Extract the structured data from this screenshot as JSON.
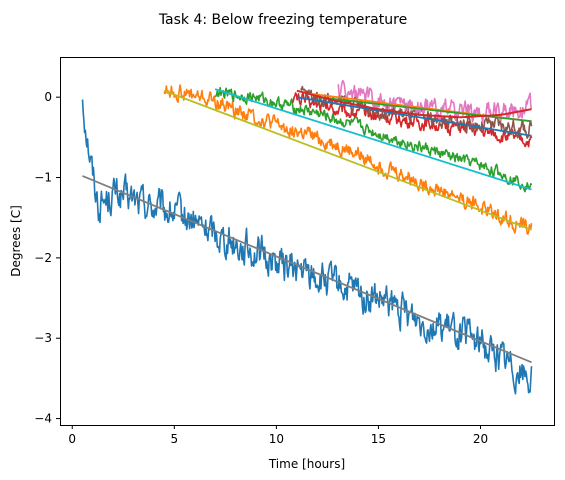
{
  "chart_data": {
    "type": "line",
    "title": "Task 4: Below freezing temperature",
    "xlabel": "Time [hours]",
    "ylabel": "Degrees [C]",
    "xlim": [
      -0.6,
      23.6
    ],
    "ylim": [
      -4.08,
      0.5
    ],
    "xticks": [
      0,
      5,
      10,
      15,
      20
    ],
    "yticks": [
      0,
      -1,
      -2,
      -3,
      -4
    ],
    "grid": false,
    "noisy_series": [
      {
        "color": "#1f77b4",
        "x_start": 0.5,
        "x_end": 22.5,
        "trend": [
          [
            0.5,
            0.0
          ],
          [
            0.7,
            -0.4
          ],
          [
            1.0,
            -0.95
          ],
          [
            1.3,
            -1.35
          ],
          [
            2.0,
            -1.2
          ],
          [
            5.0,
            -1.45
          ],
          [
            10.0,
            -2.05
          ],
          [
            15.0,
            -2.55
          ],
          [
            20.0,
            -3.05
          ],
          [
            22.5,
            -3.5
          ]
        ],
        "amplitude": 0.17
      },
      {
        "color": "#ff7f0e",
        "x_start": 4.5,
        "x_end": 22.5,
        "trend": [
          [
            4.5,
            0.1
          ],
          [
            7.0,
            -0.05
          ],
          [
            10.0,
            -0.35
          ],
          [
            13.0,
            -0.6
          ],
          [
            16.0,
            -0.95
          ],
          [
            19.0,
            -1.25
          ],
          [
            22.5,
            -1.65
          ]
        ],
        "amplitude": 0.08
      },
      {
        "color": "#2ca02c",
        "x_start": 7.0,
        "x_end": 22.5,
        "trend": [
          [
            7.0,
            0.05
          ],
          [
            9.0,
            0.0
          ],
          [
            12.0,
            -0.2
          ],
          [
            15.0,
            -0.45
          ],
          [
            18.0,
            -0.7
          ],
          [
            20.0,
            -0.85
          ],
          [
            22.5,
            -1.1
          ]
        ],
        "amplitude": 0.06
      },
      {
        "color": "#d62728",
        "x_start": 10.8,
        "x_end": 22.5,
        "trend": [
          [
            10.8,
            0.0
          ],
          [
            13.0,
            -0.15
          ],
          [
            16.0,
            -0.28
          ],
          [
            19.0,
            -0.38
          ],
          [
            22.5,
            -0.55
          ]
        ],
        "amplitude": 0.07
      },
      {
        "color": "#8c564b",
        "x_start": 11.2,
        "x_end": 22.5,
        "trend": [
          [
            11.2,
            0.05
          ],
          [
            13.0,
            -0.05
          ],
          [
            16.0,
            -0.2
          ],
          [
            19.0,
            -0.32
          ],
          [
            22.5,
            -0.4
          ]
        ],
        "amplitude": 0.08
      },
      {
        "color": "#e377c2",
        "x_start": 13.0,
        "x_end": 22.5,
        "trend": [
          [
            13.0,
            0.1
          ],
          [
            15.0,
            -0.05
          ],
          [
            18.0,
            -0.15
          ],
          [
            20.0,
            -0.2
          ],
          [
            22.5,
            -0.1
          ]
        ],
        "amplitude": 0.1
      }
    ],
    "fit_lines": [
      {
        "color": "#7f7f7f",
        "x": [
          0.5,
          22.5
        ],
        "y": [
          -0.98,
          -3.3
        ]
      },
      {
        "color": "#bcbd22",
        "x": [
          4.5,
          22.5
        ],
        "y": [
          0.08,
          -1.65
        ]
      },
      {
        "color": "#17becf",
        "x": [
          7.0,
          22.5
        ],
        "y": [
          0.1,
          -1.15
        ]
      },
      {
        "color": "#1f77b4",
        "x": [
          11.0,
          22.5
        ],
        "y": [
          0.0,
          -0.48
        ]
      },
      {
        "color": "#ff7f0e",
        "x": [
          11.4,
          22.5
        ],
        "y": [
          0.05,
          -0.3
        ]
      },
      {
        "color": "#2ca02c",
        "x": [
          12.0,
          22.5
        ],
        "y": [
          0.0,
          -0.3
        ]
      }
    ],
    "curve_fit": {
      "color": "#d62728",
      "points": [
        [
          11.0,
          0.08
        ],
        [
          13.0,
          -0.05
        ],
        [
          15.0,
          -0.15
        ],
        [
          17.0,
          -0.22
        ],
        [
          19.0,
          -0.25
        ],
        [
          21.0,
          -0.22
        ],
        [
          22.5,
          -0.15
        ]
      ]
    }
  }
}
